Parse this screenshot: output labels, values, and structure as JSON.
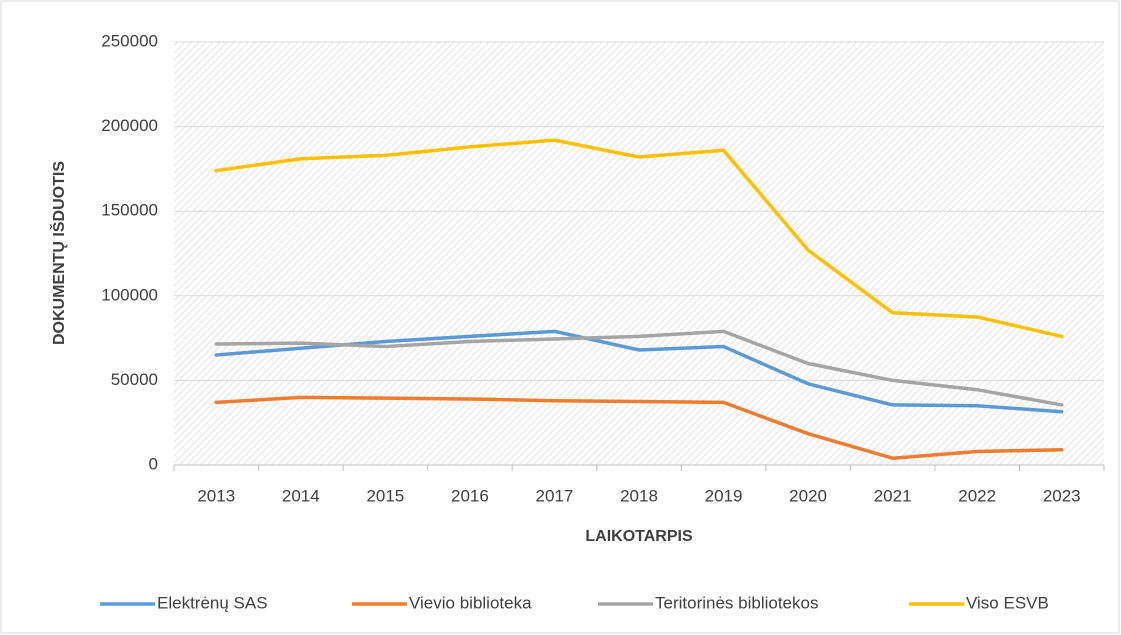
{
  "chart_data": {
    "type": "line",
    "x_label": "LAIKOTARPIS",
    "y_label": "DOKUMENTŲ IŠDUOTIS",
    "categories": [
      "2013",
      "2014",
      "2015",
      "2016",
      "2017",
      "2018",
      "2019",
      "2020",
      "2021",
      "2022",
      "2023"
    ],
    "series": [
      {
        "name": "Elektrėnų SAS",
        "color": "#5b9bd5",
        "values": [
          65000,
          69000,
          73000,
          76000,
          79000,
          68000,
          70000,
          48000,
          35500,
          35000,
          31500
        ]
      },
      {
        "name": "Vievio biblioteka",
        "color": "#ed7d31",
        "values": [
          37000,
          40000,
          39500,
          39000,
          38000,
          37500,
          37000,
          18500,
          4000,
          8000,
          9000
        ]
      },
      {
        "name": "Teritorinės bibliotekos",
        "color": "#a5a5a5",
        "values": [
          71500,
          72000,
          70000,
          73000,
          74500,
          76000,
          79000,
          60000,
          50000,
          44500,
          35500
        ]
      },
      {
        "name": "Viso ESVB",
        "color": "#ffc000",
        "values": [
          174000,
          181000,
          183000,
          188000,
          192000,
          182000,
          186000,
          127000,
          90000,
          87500,
          76000
        ]
      }
    ],
    "ylim": [
      0,
      250000
    ],
    "yticks": [
      0,
      50000,
      100000,
      150000,
      200000,
      250000
    ],
    "grid": true,
    "legend": "bottom"
  }
}
